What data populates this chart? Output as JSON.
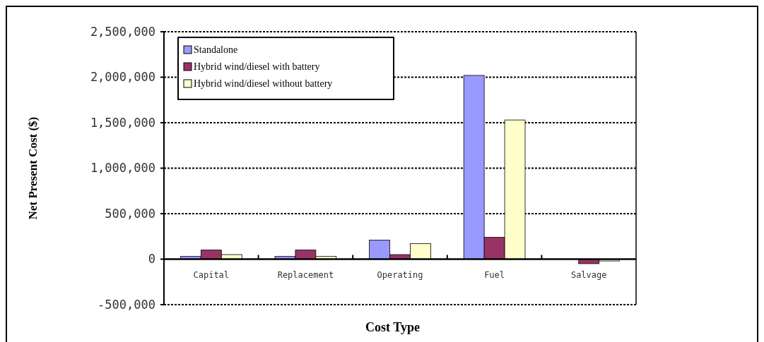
{
  "chart_data": {
    "type": "bar",
    "xlabel": "Cost Type",
    "ylabel": "Net  Present Cost ($)",
    "categories": [
      "Capital",
      "Replacement",
      "Operating",
      "Fuel",
      "Salvage"
    ],
    "series": [
      {
        "name": "Standalone",
        "color": "#9999ff",
        "values": [
          30000,
          30000,
          210000,
          2020000,
          0
        ]
      },
      {
        "name": "Hybrid wind/diesel with battery",
        "color": "#993366",
        "values": [
          100000,
          100000,
          50000,
          240000,
          -50000
        ]
      },
      {
        "name": "Hybrid wind/diesel without battery",
        "color": "#ffffcc",
        "values": [
          50000,
          30000,
          170000,
          1530000,
          -20000
        ]
      }
    ],
    "ylim": [
      -500000,
      2500000
    ],
    "yticks": [
      {
        "value": -500000,
        "label": "-500,000"
      },
      0,
      {
        "value": 500000,
        "label": "500,000"
      },
      {
        "value": 1000000,
        "label": "1,000,000"
      },
      {
        "value": 1500000,
        "label": "1,500,000"
      },
      {
        "value": 2000000,
        "label": "2,000,000"
      },
      {
        "value": 2500000,
        "label": "2,500,000"
      }
    ],
    "grid": "y",
    "legend": "top left"
  }
}
